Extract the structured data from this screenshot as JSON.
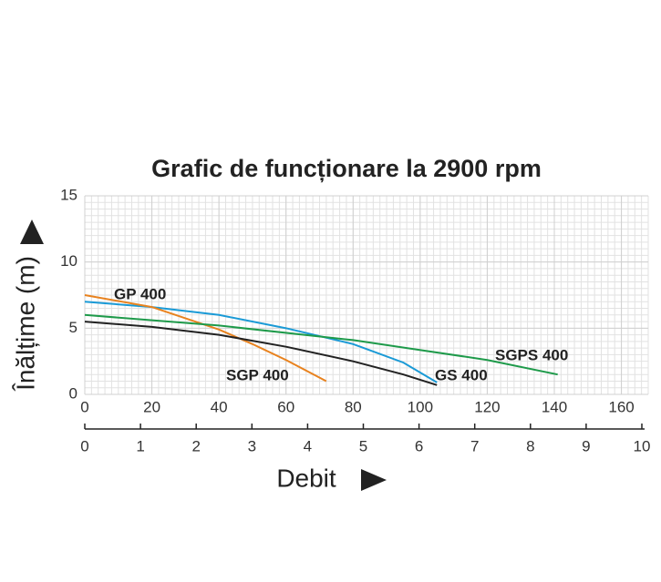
{
  "chart_data": {
    "type": "line",
    "title": "Grafic de funcționare la 2900 rpm",
    "xlabel": "Debit",
    "ylabel": "Înălțime (m)",
    "xlim": [
      0,
      168
    ],
    "xticks": [
      0,
      20,
      40,
      60,
      80,
      100,
      120,
      140,
      160
    ],
    "ylim": [
      0,
      15
    ],
    "yticks": [
      0,
      5,
      10,
      15
    ],
    "x2lim": [
      0,
      10
    ],
    "x2ticks": [
      0,
      1,
      2,
      3,
      4,
      5,
      6,
      7,
      8,
      9,
      10
    ],
    "grid": true,
    "series": [
      {
        "name": "GP 400",
        "color": "#1a9ad6",
        "x": [
          0,
          20,
          40,
          60,
          80,
          95,
          105
        ],
        "values": [
          7.0,
          6.6,
          6.0,
          5.0,
          3.8,
          2.4,
          0.9
        ]
      },
      {
        "name": "SGP 400",
        "color": "#e8821e",
        "x": [
          0,
          20,
          40,
          50,
          60,
          66,
          72
        ],
        "values": [
          7.5,
          6.6,
          4.9,
          3.8,
          2.6,
          1.8,
          1.0
        ]
      },
      {
        "name": "GS 400",
        "color": "#222222",
        "x": [
          0,
          20,
          40,
          60,
          80,
          95,
          105
        ],
        "values": [
          5.5,
          5.1,
          4.5,
          3.6,
          2.5,
          1.5,
          0.7
        ]
      },
      {
        "name": "SGPS 400",
        "color": "#1e9a4a",
        "x": [
          0,
          40,
          80,
          120,
          141
        ],
        "values": [
          6.0,
          5.2,
          4.1,
          2.6,
          1.5
        ]
      }
    ]
  }
}
